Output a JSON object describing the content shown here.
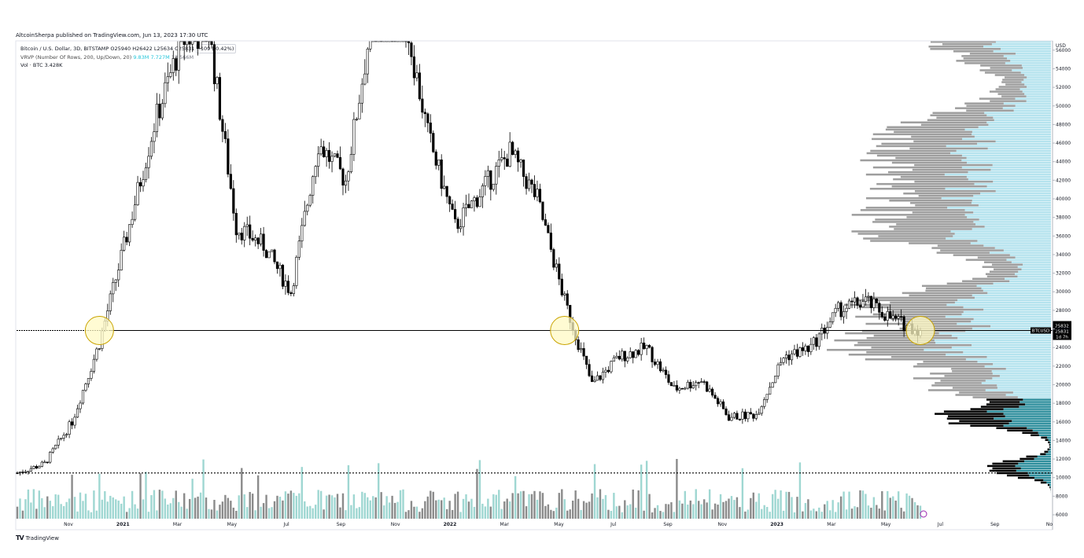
{
  "publisher_line": "AltcoinSherpa published on TradingView.com, Jun 13, 2023 17:30 UTC",
  "legend": {
    "line1": "Bitcoin / U.S. Dollar, 3D, BITSTAMP  O25940  H26422  L25634  C25831",
    "line1_badge": "-109 (-0.42%)",
    "line2_label": "VRVP (Number Of Rows, 200, Up/Down, 20)",
    "line2_v1": "9.83M",
    "line2_v2": "7.727M",
    "line2_v3": "13.566M",
    "line3": "Vol · BTC  3.428K"
  },
  "footer": {
    "logo": "TV",
    "text": "TradingView"
  },
  "colors": {
    "bull_candle": "#ffffff",
    "bear_candle": "#000000",
    "volume_bull": "#9fd7d2",
    "volume_bear": "#8b8b8b",
    "vp_up_light": "#b5e3ee",
    "vp_down_gray": "#9e9e9e",
    "vp_up_teal": "#2f8f9d",
    "vp_down_black": "#000000",
    "highlight_circle": "#fff9c4",
    "highlight_stroke": "#c9a300"
  },
  "chart_data": {
    "type": "candlestick",
    "symbol": "BTCUSD",
    "interval": "3D",
    "x_tick_labels": [
      "Nov",
      "2021",
      "Mar",
      "May",
      "Jul",
      "Sep",
      "Nov",
      "2022",
      "Mar",
      "May",
      "Jul",
      "Sep",
      "Nov",
      "2023",
      "Mar",
      "May",
      "Jul",
      "Sep",
      "No"
    ],
    "y_axis_unit": "USD",
    "y_tick_labels": [
      "56000",
      "54000",
      "52000",
      "50000",
      "48000",
      "46000",
      "44000",
      "42000",
      "40000",
      "38000",
      "36000",
      "34000",
      "32000",
      "30000",
      "28000",
      "26000",
      "24000",
      "22000",
      "20000",
      "18000",
      "16000",
      "14000",
      "12000",
      "10000",
      "8000",
      "6000"
    ],
    "ylim": [
      6000,
      57000
    ],
    "price_waypoints": [
      {
        "month": "2020-09",
        "price": 10500
      },
      {
        "month": "2020-10",
        "price": 11500
      },
      {
        "month": "2020-11",
        "price": 16000
      },
      {
        "month": "2020-12",
        "price": 24500
      },
      {
        "month": "2021-01",
        "price": 36000
      },
      {
        "month": "2021-02",
        "price": 48000
      },
      {
        "month": "2021-03",
        "price": 57000
      },
      {
        "month": "2021-04",
        "price": 58000
      },
      {
        "month": "2021-05",
        "price": 37000
      },
      {
        "month": "2021-06",
        "price": 35000
      },
      {
        "month": "2021-07",
        "price": 30000
      },
      {
        "month": "2021-08",
        "price": 46000
      },
      {
        "month": "2021-09",
        "price": 42000
      },
      {
        "month": "2021-10",
        "price": 60000
      },
      {
        "month": "2021-11",
        "price": 62000
      },
      {
        "month": "2021-12",
        "price": 47000
      },
      {
        "month": "2022-01",
        "price": 37000
      },
      {
        "month": "2022-02",
        "price": 41000
      },
      {
        "month": "2022-03",
        "price": 45000
      },
      {
        "month": "2022-04",
        "price": 40000
      },
      {
        "month": "2022-05",
        "price": 29000
      },
      {
        "month": "2022-06",
        "price": 20000
      },
      {
        "month": "2022-07",
        "price": 23000
      },
      {
        "month": "2022-08",
        "price": 24000
      },
      {
        "month": "2022-09",
        "price": 19500
      },
      {
        "month": "2022-10",
        "price": 20500
      },
      {
        "month": "2022-11",
        "price": 16500
      },
      {
        "month": "2022-12",
        "price": 16800
      },
      {
        "month": "2023-01",
        "price": 23000
      },
      {
        "month": "2023-02",
        "price": 24000
      },
      {
        "month": "2023-03",
        "price": 28000
      },
      {
        "month": "2023-04",
        "price": 29000
      },
      {
        "month": "2023-05",
        "price": 27000
      },
      {
        "month": "2023-06",
        "price": 25831
      }
    ],
    "last_close": 25831,
    "horizontal_lines": [
      {
        "price": 25831,
        "style": "solid"
      },
      {
        "price": 10500,
        "style": "dotted"
      }
    ],
    "highlight_circles": [
      {
        "month": "2020-12",
        "price": 25831
      },
      {
        "month": "2022-05",
        "price": 25831
      },
      {
        "month": "2023-06",
        "price": 25831
      }
    ],
    "price_label": {
      "symbol": "BTCUSD",
      "price": "25832",
      "last": "25831",
      "countdown": "1d 7h"
    }
  }
}
